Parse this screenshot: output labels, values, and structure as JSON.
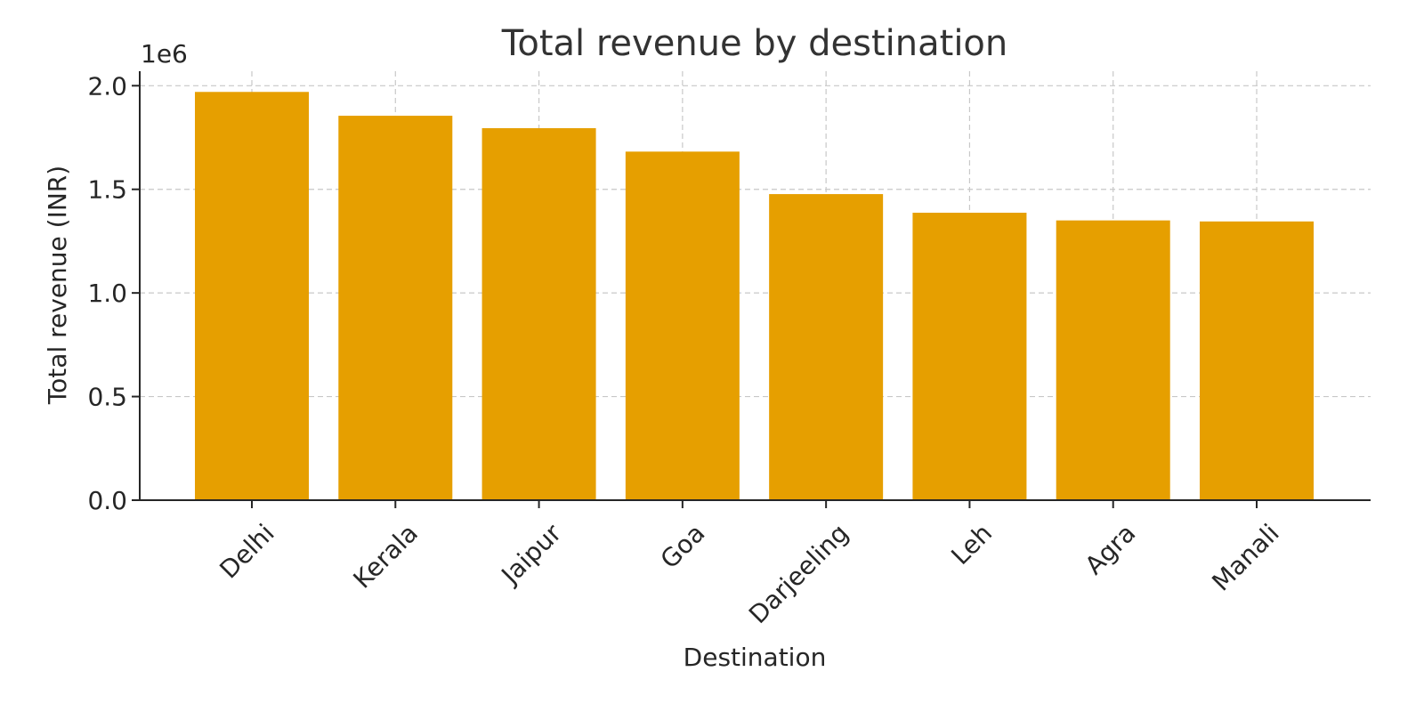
{
  "chart_data": {
    "type": "bar",
    "title": "Total revenue by destination",
    "xlabel": "Destination",
    "ylabel": "Total revenue (INR)",
    "scale_label": "1e6",
    "categories": [
      "Delhi",
      "Kerala",
      "Jaipur",
      "Goa",
      "Darjeeling",
      "Leh",
      "Agra",
      "Manali"
    ],
    "values": [
      1970000,
      1855000,
      1795000,
      1682000,
      1477000,
      1387000,
      1350000,
      1345000
    ],
    "ylim": [
      0,
      2070000
    ],
    "yticks": [
      {
        "value": 0,
        "label": "0.0"
      },
      {
        "value": 500000,
        "label": "0.5"
      },
      {
        "value": 1000000,
        "label": "1.0"
      },
      {
        "value": 1500000,
        "label": "1.5"
      },
      {
        "value": 2000000,
        "label": "2.0"
      }
    ],
    "bar_color": "#E69F00",
    "grid": true,
    "x_tick_rotation": -45
  }
}
